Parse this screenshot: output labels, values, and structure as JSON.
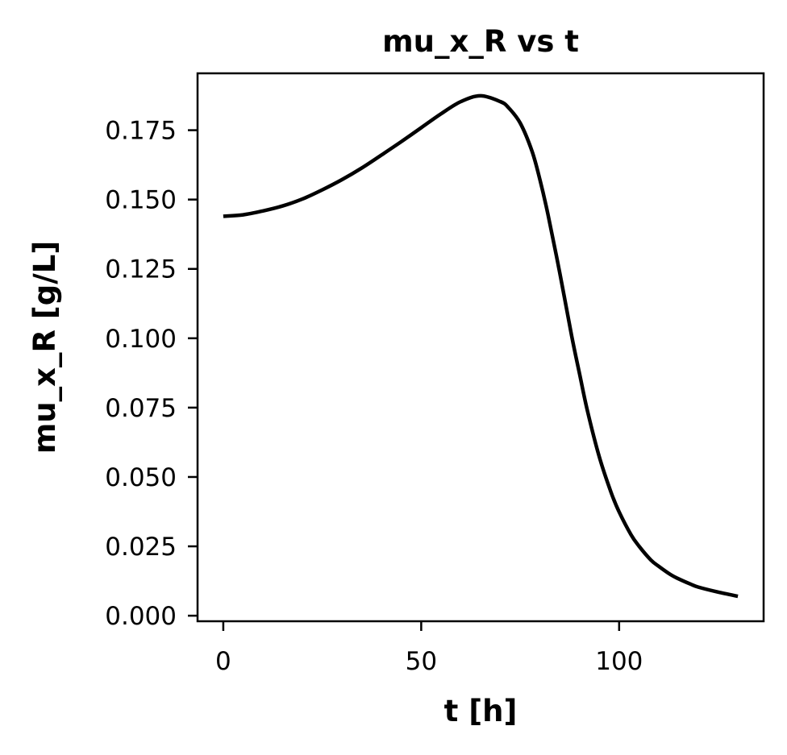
{
  "chart_data": {
    "type": "line",
    "title": "mu_x_R vs t",
    "xlabel": "t [h]",
    "ylabel": "mu_x_R [g/L]",
    "xlim": [
      -6.5,
      136.5
    ],
    "ylim": [
      -0.002,
      0.1955
    ],
    "x_ticks": [
      0,
      50,
      100
    ],
    "x_tick_labels": [
      "0",
      "50",
      "100"
    ],
    "y_ticks": [
      0.0,
      0.025,
      0.05,
      0.075,
      0.1,
      0.125,
      0.15,
      0.175
    ],
    "y_tick_labels": [
      "0.000",
      "0.025",
      "0.050",
      "0.075",
      "0.100",
      "0.125",
      "0.150",
      "0.175"
    ],
    "grid": false,
    "line_color": "#000000",
    "series": [
      {
        "x": [
          0,
          5,
          10,
          15,
          20,
          25,
          30,
          35,
          40,
          45,
          50,
          55,
          60,
          65,
          70,
          72,
          75,
          78,
          80,
          82,
          85,
          88,
          90,
          92,
          95,
          98,
          100,
          103,
          105,
          108,
          110,
          113,
          115,
          118,
          120,
          125,
          130
        ],
        "y": [
          0.144,
          0.1445,
          0.1459,
          0.1477,
          0.1502,
          0.1535,
          0.1572,
          0.1614,
          0.1661,
          0.1709,
          0.1759,
          0.1809,
          0.1853,
          0.1874,
          0.1853,
          0.1832,
          0.1776,
          0.1674,
          0.1571,
          0.1448,
          0.1236,
          0.1009,
          0.0872,
          0.0738,
          0.0572,
          0.0443,
          0.0374,
          0.0292,
          0.0251,
          0.0201,
          0.0178,
          0.0148,
          0.0133,
          0.0114,
          0.0103,
          0.0085,
          0.007
        ]
      }
    ]
  }
}
